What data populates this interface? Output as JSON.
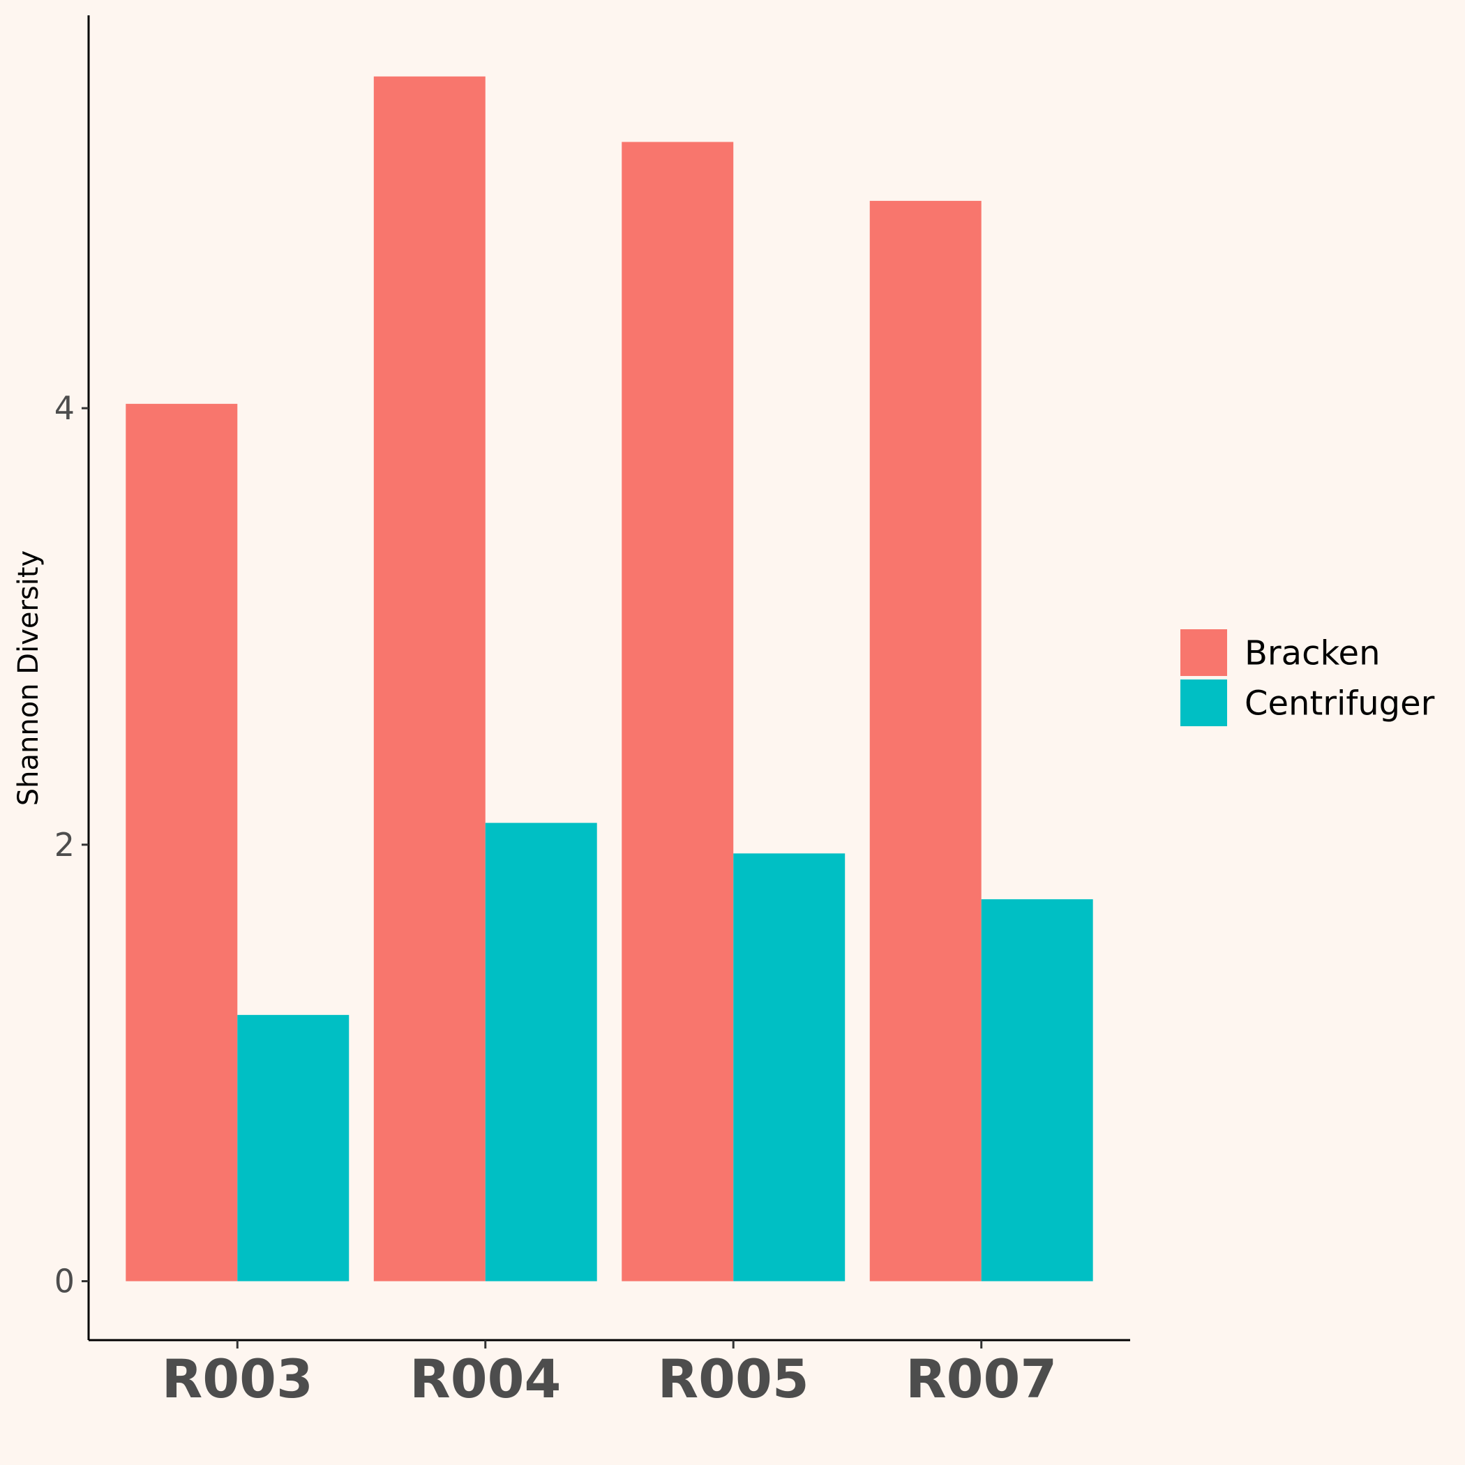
{
  "chart_data": {
    "type": "bar",
    "categories": [
      "R003",
      "R004",
      "R005",
      "R007"
    ],
    "series": [
      {
        "name": "Bracken",
        "color": "#f8766d",
        "values": [
          4.02,
          5.52,
          5.22,
          4.95
        ]
      },
      {
        "name": "Centrifuger",
        "color": "#00bfc4",
        "values": [
          1.22,
          2.1,
          1.96,
          1.75
        ]
      }
    ],
    "title": "",
    "xlabel": "",
    "ylabel": "Shannon Diversity",
    "ylim": [
      -0.27,
      5.8
    ],
    "yticks": [
      0,
      2,
      4
    ],
    "grid": false,
    "legend_position": "right",
    "background": "#fef6f0"
  }
}
